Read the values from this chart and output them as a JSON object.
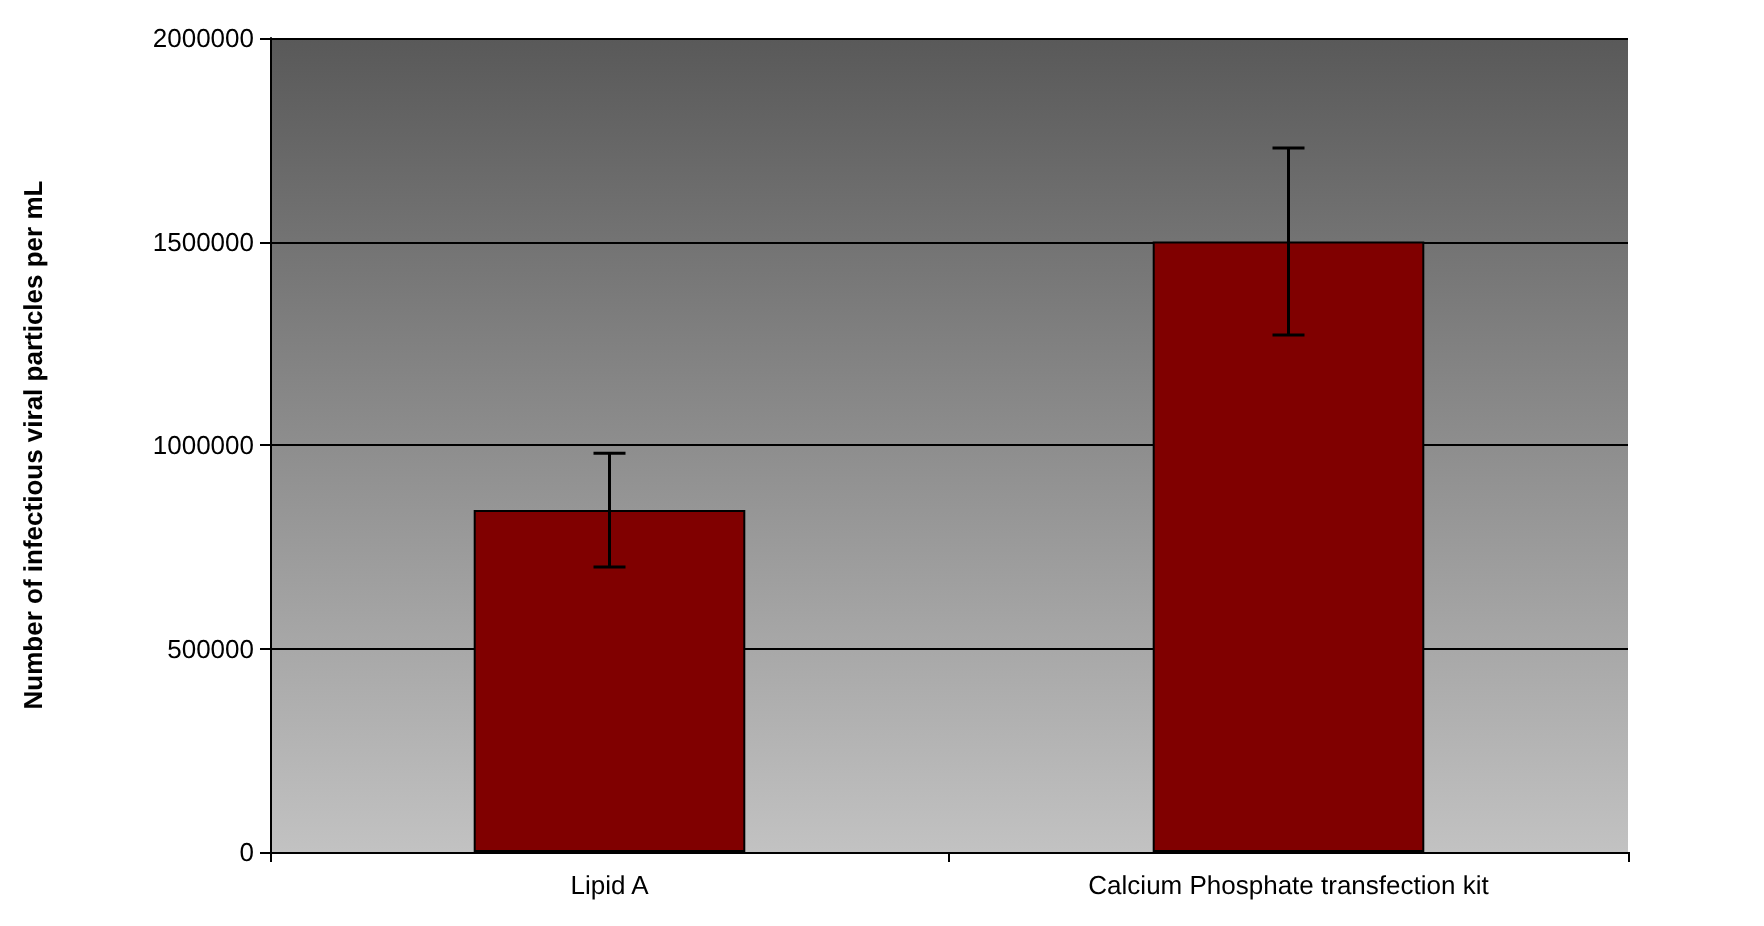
{
  "chart_data": {
    "type": "bar",
    "ylabel": "Number of infectious viral particles per mL",
    "categories": [
      "Lipid A",
      "Calcium Phosphate transfection kit"
    ],
    "values": [
      840000,
      1500000
    ],
    "color": "#800000",
    "errors": [
      [
        700000,
        980000
      ],
      [
        1270000,
        1730000
      ]
    ],
    "ylim": [
      0,
      2000000
    ],
    "yticks": [
      0,
      500000,
      1000000,
      1500000,
      2000000
    ],
    "grid": "y"
  }
}
